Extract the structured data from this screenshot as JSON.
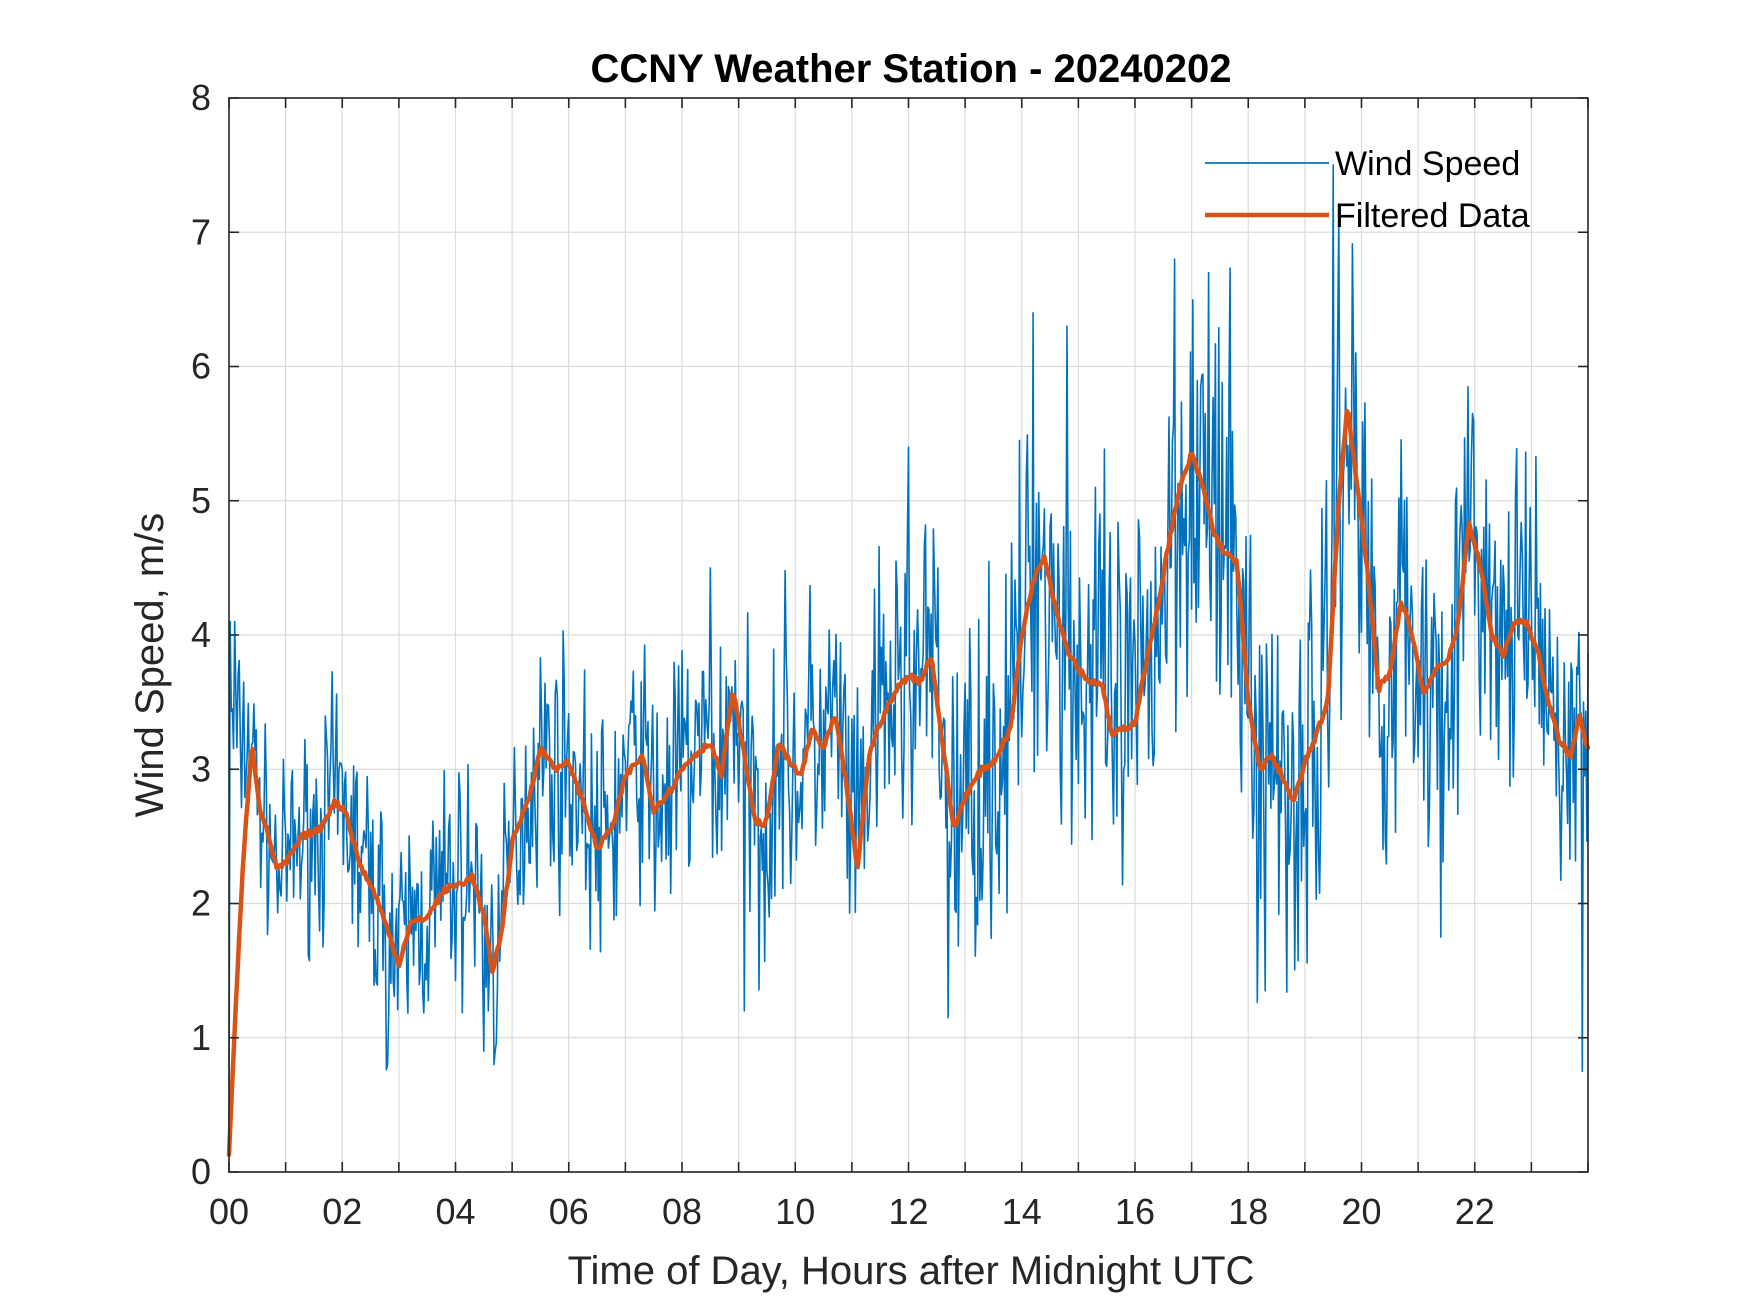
{
  "chart_data": {
    "type": "line",
    "title": "CCNY Weather Station - 20240202",
    "xlabel": "Time of Day, Hours after Midnight UTC",
    "ylabel": "Wind Speed, m/s",
    "xlim": [
      0,
      24
    ],
    "ylim": [
      0,
      8
    ],
    "grid": true,
    "legend_position": "top-right",
    "x_ticks": [
      {
        "value": 0,
        "label": "00"
      },
      {
        "value": 2,
        "label": "02"
      },
      {
        "value": 4,
        "label": "04"
      },
      {
        "value": 6,
        "label": "06"
      },
      {
        "value": 8,
        "label": "08"
      },
      {
        "value": 10,
        "label": "10"
      },
      {
        "value": 12,
        "label": "12"
      },
      {
        "value": 14,
        "label": "14"
      },
      {
        "value": 16,
        "label": "16"
      },
      {
        "value": 18,
        "label": "18"
      },
      {
        "value": 20,
        "label": "20"
      },
      {
        "value": 22,
        "label": "22"
      }
    ],
    "y_ticks": [
      {
        "value": 0,
        "label": "0"
      },
      {
        "value": 1,
        "label": "1"
      },
      {
        "value": 2,
        "label": "2"
      },
      {
        "value": 3,
        "label": "3"
      },
      {
        "value": 4,
        "label": "4"
      },
      {
        "value": 5,
        "label": "5"
      },
      {
        "value": 6,
        "label": "6"
      },
      {
        "value": 7,
        "label": "7"
      },
      {
        "value": 8,
        "label": "8"
      }
    ],
    "series": [
      {
        "name": "Wind Speed",
        "color": "#0072BD",
        "sample_interval_hours": 0.02,
        "noise_seed": 7,
        "noise_amplitude": [
          [
            0,
            0.6
          ],
          [
            1,
            0.55
          ],
          [
            2,
            0.75
          ],
          [
            4,
            0.75
          ],
          [
            5,
            0.7
          ],
          [
            8,
            0.85
          ],
          [
            12,
            1.0
          ],
          [
            14,
            1.2
          ],
          [
            17,
            1.35
          ],
          [
            19,
            1.4
          ],
          [
            20,
            1.35
          ],
          [
            22,
            1.0
          ],
          [
            24,
            0.9
          ]
        ],
        "peaks": [
          {
            "x": 19.5,
            "y": 7.5
          },
          {
            "x": 19.6,
            "y": 7.1
          },
          {
            "x": 16.7,
            "y": 6.8
          },
          {
            "x": 17.3,
            "y": 6.7
          },
          {
            "x": 14.2,
            "y": 6.4
          },
          {
            "x": 14.8,
            "y": 6.3
          },
          {
            "x": 12.0,
            "y": 5.4
          },
          {
            "x": 15.3,
            "y": 5.1
          },
          {
            "x": 0.1,
            "y": 4.1
          },
          {
            "x": 8.5,
            "y": 4.5
          },
          {
            "x": 2.8,
            "y": 0.8
          },
          {
            "x": 4.5,
            "y": 0.9
          },
          {
            "x": 9.1,
            "y": 1.2
          },
          {
            "x": 12.7,
            "y": 1.15
          },
          {
            "x": 18.3,
            "y": 1.35
          },
          {
            "x": 21.4,
            "y": 1.75
          },
          {
            "x": 23.9,
            "y": 0.75
          }
        ]
      },
      {
        "name": "Filtered Data",
        "color": "#D95319",
        "x": [
          0,
          0.15,
          0.25,
          0.4,
          0.55,
          0.7,
          0.85,
          1.0,
          1.3,
          1.6,
          1.85,
          2.05,
          2.3,
          2.6,
          3.0,
          3.2,
          3.5,
          3.8,
          4.1,
          4.3,
          4.5,
          4.65,
          4.8,
          5.0,
          5.3,
          5.5,
          5.8,
          6.0,
          6.3,
          6.5,
          6.8,
          7.0,
          7.3,
          7.5,
          7.8,
          8.0,
          8.2,
          8.5,
          8.7,
          8.9,
          9.1,
          9.3,
          9.5,
          9.7,
          9.9,
          10.1,
          10.3,
          10.5,
          10.7,
          10.9,
          11.1,
          11.3,
          11.5,
          11.8,
          12.0,
          12.2,
          12.4,
          12.6,
          12.8,
          13.0,
          13.3,
          13.5,
          13.8,
          14.0,
          14.2,
          14.4,
          14.6,
          14.8,
          15.0,
          15.2,
          15.4,
          15.6,
          15.8,
          16.0,
          16.2,
          16.4,
          16.6,
          16.8,
          17.0,
          17.2,
          17.4,
          17.6,
          17.8,
          18.0,
          18.2,
          18.4,
          18.6,
          18.8,
          19.0,
          19.2,
          19.4,
          19.6,
          19.75,
          19.9,
          20.1,
          20.3,
          20.5,
          20.7,
          20.9,
          21.1,
          21.3,
          21.5,
          21.7,
          21.9,
          22.1,
          22.3,
          22.5,
          22.7,
          22.9,
          23.1,
          23.3,
          23.5,
          23.7,
          23.85,
          24.0
        ],
        "values": [
          0.15,
          1.5,
          2.3,
          3.2,
          2.7,
          2.5,
          2.25,
          2.3,
          2.5,
          2.55,
          2.75,
          2.7,
          2.3,
          2.05,
          1.55,
          1.85,
          1.9,
          2.1,
          2.15,
          2.2,
          1.9,
          1.5,
          1.75,
          2.45,
          2.8,
          3.15,
          3.0,
          3.05,
          2.7,
          2.4,
          2.6,
          2.95,
          3.1,
          2.7,
          2.85,
          3.0,
          3.1,
          3.2,
          2.95,
          3.6,
          3.1,
          2.6,
          2.6,
          3.2,
          3.05,
          2.95,
          3.3,
          3.15,
          3.4,
          2.9,
          2.25,
          3.1,
          3.35,
          3.6,
          3.7,
          3.65,
          3.85,
          3.2,
          2.55,
          2.8,
          3.0,
          3.05,
          3.3,
          4.0,
          4.4,
          4.6,
          4.2,
          3.9,
          3.75,
          3.65,
          3.65,
          3.25,
          3.3,
          3.35,
          3.8,
          4.2,
          4.7,
          5.1,
          5.35,
          5.1,
          4.75,
          4.6,
          4.55,
          3.5,
          3.0,
          3.1,
          2.95,
          2.75,
          3.05,
          3.25,
          3.5,
          5.0,
          5.7,
          5.2,
          4.5,
          3.6,
          3.7,
          4.25,
          4.0,
          3.55,
          3.75,
          3.8,
          4.05,
          4.85,
          4.5,
          4.0,
          3.85,
          4.1,
          4.1,
          3.9,
          3.5,
          3.2,
          3.1,
          3.4,
          3.15
        ]
      }
    ]
  }
}
